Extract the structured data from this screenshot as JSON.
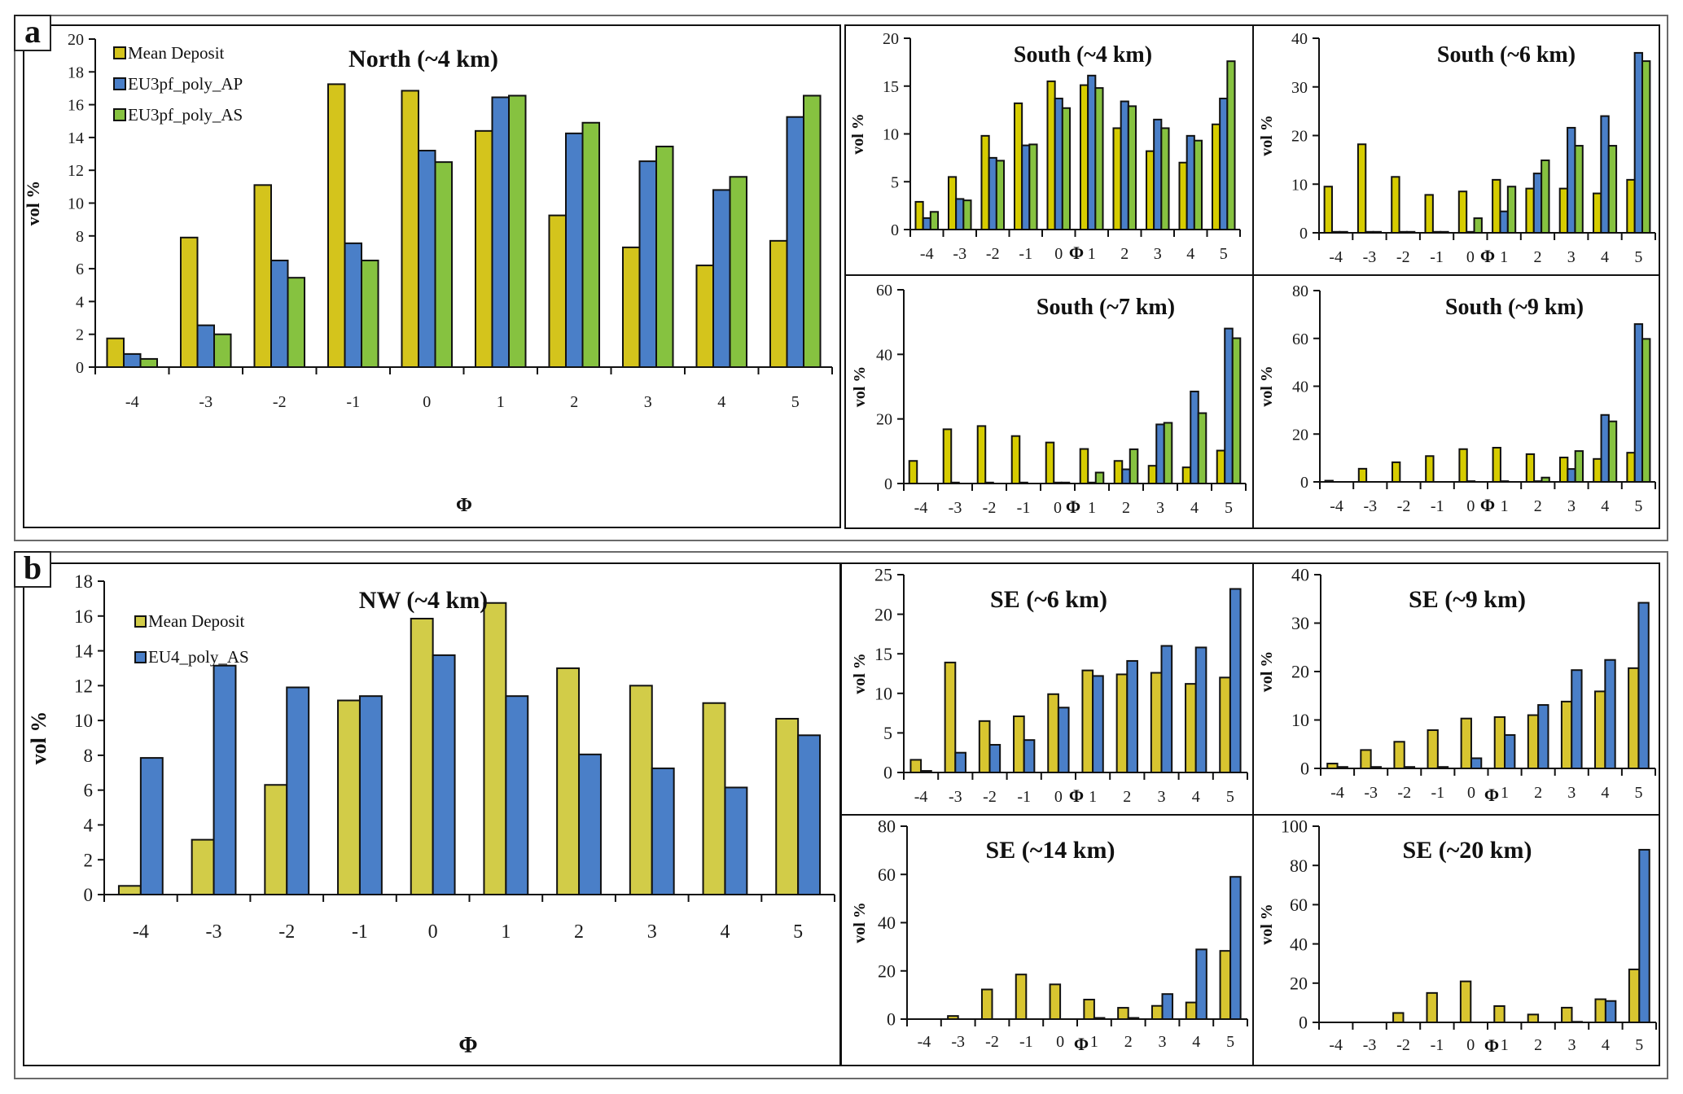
{
  "figure": {
    "panels": [
      {
        "label": "a"
      },
      {
        "label": "b"
      }
    ]
  },
  "colors": {
    "mean_deposit_a": "#d4c41c",
    "mean_deposit_south": "#d6cc00",
    "mean_deposit_b": "#d2cc48",
    "mean_deposit_se": "#d8c530",
    "ap": "#4a7fc8",
    "as": "#86c240",
    "eu4": "#4a7fc8"
  },
  "chart_data": [
    {
      "id": "north-4km",
      "panel": "a",
      "type": "bar",
      "title": "North (~4 km)",
      "xlabel": "Φ",
      "ylabel": "vol %",
      "categories": [
        "-4",
        "-3",
        "-2",
        "-1",
        "0",
        "1",
        "2",
        "3",
        "4",
        "5"
      ],
      "ylim": [
        0,
        20
      ],
      "yticks": [
        0,
        2,
        4,
        6,
        8,
        10,
        12,
        14,
        16,
        18,
        20
      ],
      "legend": "top-left",
      "series": [
        {
          "name": "Mean Deposit",
          "color_key": "mean_deposit_a",
          "values": [
            1.75,
            7.9,
            11.1,
            17.25,
            16.85,
            14.4,
            9.25,
            7.3,
            6.2,
            7.7
          ]
        },
        {
          "name": "EU3pf_poly_AP",
          "color_key": "ap",
          "values": [
            0.8,
            2.55,
            6.5,
            7.55,
            13.2,
            16.45,
            14.25,
            12.55,
            10.8,
            15.25
          ]
        },
        {
          "name": "EU3pf_poly_AS",
          "color_key": "as",
          "values": [
            0.5,
            2.0,
            5.45,
            6.5,
            12.5,
            16.55,
            14.9,
            13.45,
            11.6,
            16.55
          ]
        }
      ]
    },
    {
      "id": "south-4km",
      "panel": "a",
      "type": "bar",
      "title": "South (~4 km)",
      "xlabel": "Φ",
      "ylabel": "vol %",
      "categories": [
        "-4",
        "-3",
        "-2",
        "-1",
        "0",
        "1",
        "2",
        "3",
        "4",
        "5"
      ],
      "ylim": [
        0,
        20
      ],
      "yticks": [
        0,
        5,
        10,
        15,
        20
      ],
      "series": [
        {
          "name": "Mean Deposit",
          "color_key": "mean_deposit_south",
          "values": [
            2.9,
            5.5,
            9.8,
            13.2,
            15.5,
            15.1,
            10.6,
            8.2,
            7.0,
            11.0
          ]
        },
        {
          "name": "EU3pf_poly_AP",
          "color_key": "ap",
          "values": [
            1.2,
            3.2,
            7.5,
            8.8,
            13.7,
            16.1,
            13.4,
            11.5,
            9.8,
            13.7
          ]
        },
        {
          "name": "EU3pf_poly_AS",
          "color_key": "as",
          "values": [
            1.85,
            3.05,
            7.2,
            8.9,
            12.7,
            14.8,
            12.9,
            10.6,
            9.3,
            17.6
          ]
        }
      ]
    },
    {
      "id": "south-6km",
      "panel": "a",
      "type": "bar",
      "title": "South (~6 km)",
      "xlabel": "Φ",
      "ylabel": "vol %",
      "categories": [
        "-4",
        "-3",
        "-2",
        "-1",
        "0",
        "1",
        "2",
        "3",
        "4",
        "5"
      ],
      "ylim": [
        0,
        40
      ],
      "yticks": [
        0,
        10,
        20,
        30,
        40
      ],
      "series": [
        {
          "name": "Mean Deposit",
          "color_key": "mean_deposit_south",
          "values": [
            9.5,
            18.2,
            11.5,
            7.8,
            8.5,
            10.9,
            9.1,
            9.1,
            8.1,
            10.9
          ]
        },
        {
          "name": "EU3pf_poly_AP",
          "color_key": "ap",
          "values": [
            0.2,
            0.2,
            0.2,
            0.2,
            0.2,
            4.4,
            12.2,
            21.6,
            24.0,
            37.0
          ]
        },
        {
          "name": "EU3pf_poly_AS",
          "color_key": "as",
          "values": [
            0.2,
            0.2,
            0.2,
            0.2,
            3.0,
            9.5,
            14.9,
            17.9,
            17.9,
            35.3
          ]
        }
      ]
    },
    {
      "id": "south-7km",
      "panel": "a",
      "type": "bar",
      "title": "South (~7 km)",
      "xlabel": "Φ",
      "ylabel": "vol %",
      "categories": [
        "-4",
        "-3",
        "-2",
        "-1",
        "0",
        "1",
        "2",
        "3",
        "4",
        "5"
      ],
      "ylim": [
        0,
        60
      ],
      "yticks": [
        0,
        20,
        40,
        60
      ],
      "series": [
        {
          "name": "Mean Deposit",
          "color_key": "mean_deposit_south",
          "values": [
            7.0,
            16.8,
            17.8,
            14.7,
            12.7,
            10.7,
            7.0,
            5.5,
            5.0,
            10.2
          ]
        },
        {
          "name": "EU3pf_poly_AP",
          "color_key": "ap",
          "values": [
            0,
            0.3,
            0.3,
            0.3,
            0.3,
            0.3,
            4.4,
            18.3,
            28.5,
            48.0
          ]
        },
        {
          "name": "EU3pf_poly_AS",
          "color_key": "as",
          "values": [
            0,
            0,
            0,
            0,
            0.3,
            3.4,
            10.6,
            18.8,
            21.8,
            45.0
          ]
        }
      ]
    },
    {
      "id": "south-9km",
      "panel": "a",
      "type": "bar",
      "title": "South (~9 km)",
      "xlabel": "Φ",
      "ylabel": "vol %",
      "categories": [
        "-4",
        "-3",
        "-2",
        "-1",
        "0",
        "1",
        "2",
        "3",
        "4",
        "5"
      ],
      "ylim": [
        0,
        80
      ],
      "yticks": [
        0,
        20,
        40,
        60,
        80
      ],
      "series": [
        {
          "name": "Mean Deposit",
          "color_key": "mean_deposit_south",
          "values": [
            0.5,
            5.5,
            8.2,
            10.8,
            13.7,
            14.3,
            11.6,
            10.2,
            9.6,
            12.2
          ]
        },
        {
          "name": "EU3pf_poly_AP",
          "color_key": "ap",
          "values": [
            0,
            0,
            0,
            0,
            0.3,
            0.3,
            0.3,
            5.4,
            28.0,
            66.0
          ]
        },
        {
          "name": "EU3pf_poly_AS",
          "color_key": "as",
          "values": [
            0,
            0,
            0,
            0,
            0,
            0,
            1.8,
            12.9,
            25.3,
            59.8
          ]
        }
      ]
    },
    {
      "id": "nw-4km",
      "panel": "b",
      "type": "bar",
      "title": "NW (~4 km)",
      "xlabel": "Φ",
      "ylabel": "vol %",
      "categories": [
        "-4",
        "-3",
        "-2",
        "-1",
        "0",
        "1",
        "2",
        "3",
        "4",
        "5"
      ],
      "ylim": [
        0,
        18
      ],
      "yticks": [
        0,
        2,
        4,
        6,
        8,
        10,
        12,
        14,
        16,
        18
      ],
      "legend": "top-left",
      "series": [
        {
          "name": "Mean Deposit",
          "color_key": "mean_deposit_b",
          "values": [
            0.5,
            3.15,
            6.3,
            11.15,
            15.85,
            16.75,
            13.0,
            12.0,
            11.0,
            10.1
          ]
        },
        {
          "name": "EU4_poly_AS",
          "color_key": "eu4",
          "values": [
            7.85,
            13.15,
            11.9,
            11.4,
            13.75,
            11.4,
            8.05,
            7.25,
            6.15,
            9.15
          ]
        }
      ]
    },
    {
      "id": "se-6km",
      "panel": "b",
      "type": "bar",
      "title": "SE (~6 km)",
      "xlabel": "Φ",
      "ylabel": "vol %",
      "categories": [
        "-4",
        "-3",
        "-2",
        "-1",
        "0",
        "1",
        "2",
        "3",
        "4",
        "5"
      ],
      "ylim": [
        0,
        25
      ],
      "yticks": [
        0,
        5,
        10,
        15,
        20,
        25
      ],
      "series": [
        {
          "name": "Mean Deposit",
          "color_key": "mean_deposit_se",
          "values": [
            1.6,
            13.9,
            6.5,
            7.1,
            9.9,
            12.9,
            12.4,
            12.6,
            11.2,
            12.0
          ]
        },
        {
          "name": "EU4_poly_AS",
          "color_key": "eu4",
          "values": [
            0.2,
            2.5,
            3.5,
            4.1,
            8.2,
            12.2,
            14.1,
            16.0,
            15.8,
            23.2
          ]
        }
      ]
    },
    {
      "id": "se-9km",
      "panel": "b",
      "type": "bar",
      "title": "SE (~9 km)",
      "xlabel": "Φ",
      "ylabel": "vol %",
      "categories": [
        "-4",
        "-3",
        "-2",
        "-1",
        "0",
        "1",
        "2",
        "3",
        "4",
        "5"
      ],
      "ylim": [
        0,
        40
      ],
      "yticks": [
        0,
        10,
        20,
        30,
        40
      ],
      "series": [
        {
          "name": "Mean Deposit",
          "color_key": "mean_deposit_se",
          "values": [
            1.0,
            3.8,
            5.5,
            7.9,
            10.3,
            10.6,
            11.0,
            13.8,
            15.9,
            20.7
          ]
        },
        {
          "name": "EU4_poly_AS",
          "color_key": "eu4",
          "values": [
            0.3,
            0.3,
            0.3,
            0.3,
            2.1,
            6.9,
            13.1,
            20.3,
            22.4,
            34.2
          ]
        }
      ]
    },
    {
      "id": "se-14km",
      "panel": "b",
      "type": "bar",
      "title": "SE (~14 km)",
      "xlabel": "Φ",
      "ylabel": "vol %",
      "categories": [
        "-4",
        "-3",
        "-2",
        "-1",
        "0",
        "1",
        "2",
        "3",
        "4",
        "5"
      ],
      "ylim": [
        0,
        80
      ],
      "yticks": [
        0,
        20,
        40,
        60,
        80
      ],
      "series": [
        {
          "name": "Mean Deposit",
          "color_key": "mean_deposit_se",
          "values": [
            0,
            1.3,
            12.3,
            18.5,
            14.4,
            8.1,
            4.7,
            5.5,
            6.9,
            28.3
          ]
        },
        {
          "name": "EU4_poly_AS",
          "color_key": "eu4",
          "values": [
            0,
            0,
            0,
            0,
            0,
            0.5,
            0.5,
            10.4,
            28.9,
            59.0
          ]
        }
      ]
    },
    {
      "id": "se-20km",
      "panel": "b",
      "type": "bar",
      "title": "SE (~20 km)",
      "xlabel": "Φ",
      "ylabel": "vol %",
      "categories": [
        "-4",
        "-3",
        "-2",
        "-1",
        "0",
        "1",
        "2",
        "3",
        "4",
        "5"
      ],
      "ylim": [
        0,
        100
      ],
      "yticks": [
        0,
        20,
        40,
        60,
        80,
        100
      ],
      "series": [
        {
          "name": "Mean Deposit",
          "color_key": "mean_deposit_se",
          "values": [
            0,
            0,
            4.8,
            15.0,
            20.9,
            8.3,
            4.0,
            7.5,
            11.8,
            27.0
          ]
        },
        {
          "name": "EU4_poly_AS",
          "color_key": "eu4",
          "values": [
            0,
            0,
            0,
            0,
            0,
            0,
            0,
            0.3,
            10.9,
            88.0
          ]
        }
      ]
    }
  ]
}
